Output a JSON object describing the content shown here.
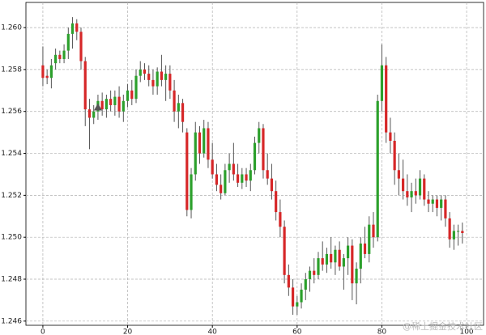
{
  "chart_data": {
    "type": "candlestick",
    "x": [
      0,
      1,
      2,
      3,
      4,
      5,
      6,
      7,
      8,
      9,
      10,
      11,
      12,
      13,
      14,
      15,
      16,
      17,
      18,
      19,
      20,
      21,
      22,
      23,
      24,
      25,
      26,
      27,
      28,
      29,
      30,
      31,
      32,
      33,
      34,
      35,
      36,
      37,
      38,
      39,
      40,
      41,
      42,
      43,
      44,
      45,
      46,
      47,
      48,
      49,
      50,
      51,
      52,
      53,
      54,
      55,
      56,
      57,
      58,
      59,
      60,
      61,
      62,
      63,
      64,
      65,
      66,
      67,
      68,
      69,
      70,
      71,
      72,
      73,
      74,
      75,
      76,
      77,
      78,
      79,
      80,
      81,
      82,
      83,
      84,
      85,
      86,
      87,
      88,
      89,
      90,
      91,
      92,
      93,
      94,
      95,
      96,
      97,
      98,
      99
    ],
    "open": [
      1.2582,
      1.2577,
      1.2576,
      1.2583,
      1.2587,
      1.2585,
      1.2589,
      1.2597,
      1.2602,
      1.2598,
      1.2584,
      1.2561,
      1.2557,
      1.256,
      1.2565,
      1.2561,
      1.2566,
      1.2563,
      1.2567,
      1.256,
      1.2565,
      1.257,
      1.2566,
      1.2577,
      1.258,
      1.2578,
      1.2575,
      1.2572,
      1.2579,
      1.2575,
      1.2578,
      1.257,
      1.256,
      1.2564,
      1.255,
      1.2513,
      1.253,
      1.255,
      1.254,
      1.2552,
      1.2537,
      1.253,
      1.2525,
      1.2521,
      1.2532,
      1.2535,
      1.253,
      1.2526,
      1.253,
      1.2527,
      1.2532,
      1.2545,
      1.2552,
      1.2532,
      1.2528,
      1.2522,
      1.2512,
      1.2505,
      1.2482,
      1.2476,
      1.2467,
      1.2469,
      1.2475,
      1.248,
      1.2484,
      1.2482,
      1.249,
      1.2487,
      1.2492,
      1.2488,
      1.2494,
      1.2486,
      1.249,
      1.2496,
      1.2478,
      1.2485,
      1.2497,
      1.2492,
      1.2506,
      1.25,
      1.2565,
      1.2582,
      1.255,
      1.2546,
      1.2532,
      1.2528,
      1.2522,
      1.2519,
      1.2522,
      1.252,
      1.2528,
      1.2518,
      1.2516,
      1.2518,
      1.2514,
      1.2518,
      1.2509,
      1.2499,
      1.2503,
      1.2503
    ],
    "high": [
      1.2591,
      1.258,
      1.2585,
      1.259,
      1.2589,
      1.2592,
      1.26,
      1.2605,
      1.2604,
      1.26,
      1.2586,
      1.2566,
      1.2563,
      1.2568,
      1.2569,
      1.2568,
      1.257,
      1.257,
      1.2572,
      1.2568,
      1.2573,
      1.2575,
      1.258,
      1.2584,
      1.2583,
      1.2582,
      1.258,
      1.2581,
      1.2587,
      1.2582,
      1.2582,
      1.2575,
      1.2568,
      1.2566,
      1.2552,
      1.2533,
      1.2555,
      1.2553,
      1.2556,
      1.2555,
      1.2545,
      1.2535,
      1.253,
      1.2535,
      1.254,
      1.2545,
      1.2535,
      1.2533,
      1.2533,
      1.2535,
      1.2548,
      1.2555,
      1.2554,
      1.254,
      1.2535,
      1.2527,
      1.2518,
      1.2508,
      1.2487,
      1.248,
      1.2472,
      1.2478,
      1.2483,
      1.2486,
      1.249,
      1.2493,
      1.2498,
      1.2495,
      1.25,
      1.2496,
      1.2498,
      1.2492,
      1.25,
      1.2499,
      1.2488,
      1.25,
      1.2505,
      1.251,
      1.2512,
      1.2568,
      1.2592,
      1.2586,
      1.2557,
      1.255,
      1.254,
      1.2537,
      1.253,
      1.2526,
      1.2528,
      1.2532,
      1.253,
      1.2522,
      1.252,
      1.252,
      1.252,
      1.252,
      1.2512,
      1.2506,
      1.2506,
      1.2507
    ],
    "low": [
      1.2572,
      1.2573,
      1.2571,
      1.258,
      1.2583,
      1.2583,
      1.2585,
      1.259,
      1.2594,
      1.258,
      1.2553,
      1.2542,
      1.2554,
      1.2556,
      1.2558,
      1.2557,
      1.256,
      1.2558,
      1.2557,
      1.2555,
      1.2562,
      1.2563,
      1.2564,
      1.2574,
      1.2575,
      1.2572,
      1.2568,
      1.2568,
      1.2572,
      1.2565,
      1.2566,
      1.2555,
      1.2552,
      1.255,
      1.251,
      1.2509,
      1.2527,
      1.2535,
      1.2538,
      1.2533,
      1.2528,
      1.2522,
      1.2518,
      1.252,
      1.2526,
      1.2527,
      1.2524,
      1.2523,
      1.2524,
      1.2522,
      1.253,
      1.254,
      1.2528,
      1.2525,
      1.2518,
      1.2508,
      1.25,
      1.2478,
      1.2472,
      1.2463,
      1.2463,
      1.2466,
      1.247,
      1.2474,
      1.2478,
      1.248,
      1.2484,
      1.2483,
      1.2485,
      1.2482,
      1.2484,
      1.2475,
      1.2482,
      1.247,
      1.2468,
      1.2478,
      1.249,
      1.2488,
      1.2495,
      1.2498,
      1.256,
      1.2545,
      1.254,
      1.2525,
      1.252,
      1.2518,
      1.2515,
      1.2512,
      1.2516,
      1.2518,
      1.2515,
      1.2512,
      1.2512,
      1.251,
      1.2508,
      1.2505,
      1.2495,
      1.2494,
      1.2496,
      1.2497
    ],
    "close": [
      1.2576,
      1.2576,
      1.2582,
      1.2587,
      1.2585,
      1.2589,
      1.2597,
      1.2602,
      1.2598,
      1.2584,
      1.2561,
      1.2557,
      1.256,
      1.2565,
      1.2561,
      1.2566,
      1.2563,
      1.2567,
      1.256,
      1.2565,
      1.257,
      1.2566,
      1.2577,
      1.258,
      1.2578,
      1.2575,
      1.2572,
      1.2579,
      1.2575,
      1.2578,
      1.257,
      1.256,
      1.2564,
      1.2555,
      1.2513,
      1.253,
      1.255,
      1.254,
      1.2552,
      1.2537,
      1.253,
      1.2525,
      1.2521,
      1.2532,
      1.2535,
      1.253,
      1.2526,
      1.253,
      1.2527,
      1.2532,
      1.2545,
      1.2552,
      1.2532,
      1.2528,
      1.2522,
      1.2512,
      1.2505,
      1.2482,
      1.2476,
      1.2467,
      1.2469,
      1.2475,
      1.248,
      1.2484,
      1.2482,
      1.249,
      1.2487,
      1.2492,
      1.2488,
      1.2494,
      1.2486,
      1.249,
      1.2496,
      1.2478,
      1.2485,
      1.2497,
      1.2492,
      1.2506,
      1.25,
      1.2565,
      1.2582,
      1.255,
      1.2546,
      1.2532,
      1.2528,
      1.2522,
      1.2519,
      1.2522,
      1.252,
      1.2528,
      1.2518,
      1.2516,
      1.2518,
      1.2514,
      1.2518,
      1.2509,
      1.2499,
      1.2503,
      1.2503,
      1.2502
    ],
    "up_color": "#2ca02c",
    "down_color": "#d62728",
    "markers": [
      {
        "x": 13,
        "y": 1.2562,
        "color": "#555555"
      }
    ],
    "xlim": [
      -4,
      104
    ],
    "ylim": [
      1.2458,
      1.2612
    ],
    "xticks": [
      0,
      20,
      40,
      60,
      80,
      100
    ],
    "yticks": [
      1.246,
      1.248,
      {
        "value": 1.25,
        "label": "1.250"
      },
      1.252,
      1.254,
      1.256,
      1.258,
      {
        "value": 1.26,
        "label": "1.260"
      }
    ],
    "grid": true,
    "watermark": "@稀土掘金技术社区"
  }
}
